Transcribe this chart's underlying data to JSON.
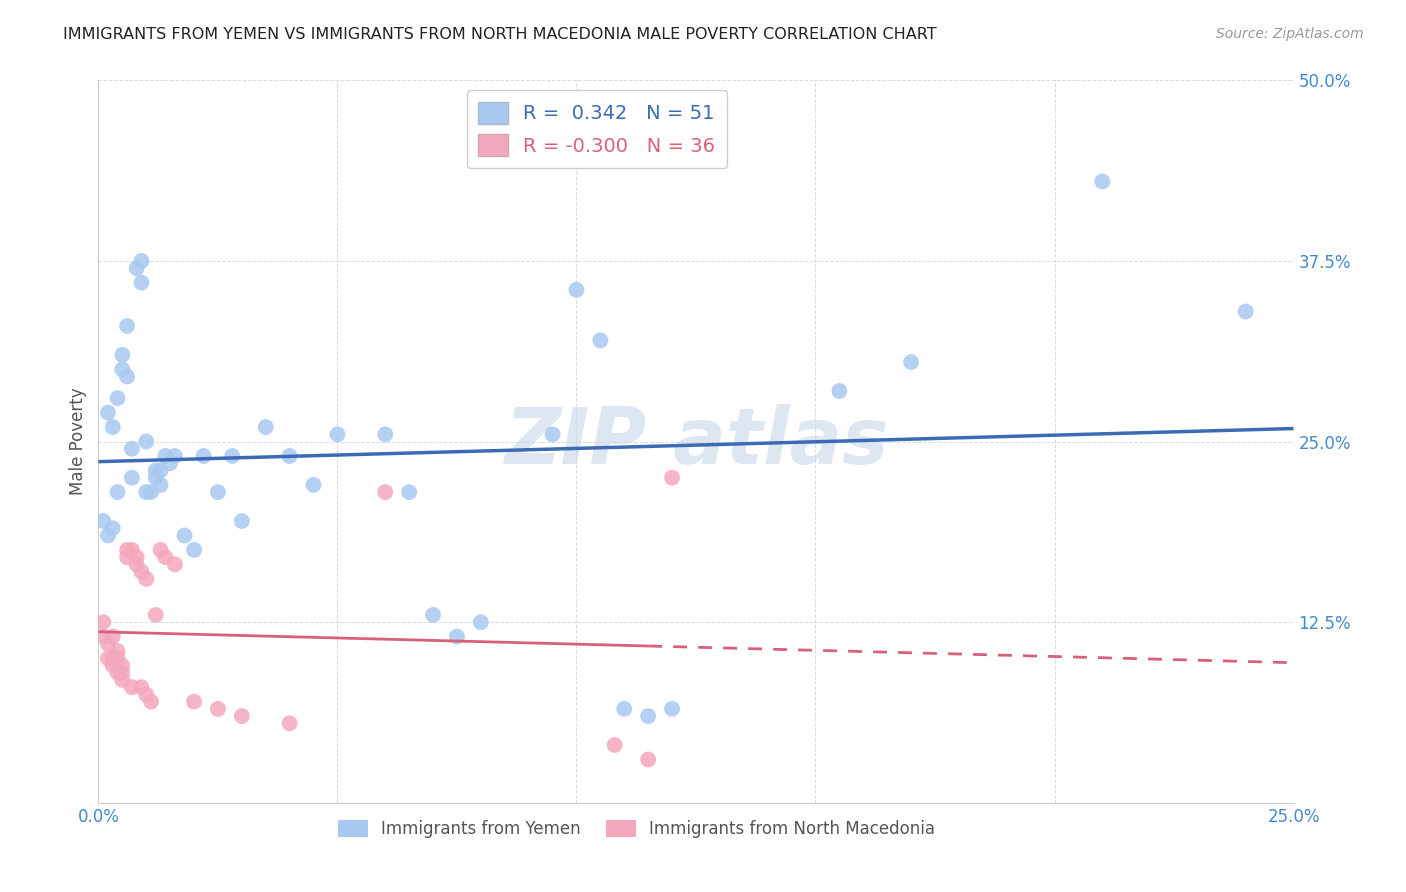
{
  "title": "IMMIGRANTS FROM YEMEN VS IMMIGRANTS FROM NORTH MACEDONIA MALE POVERTY CORRELATION CHART",
  "source": "Source: ZipAtlas.com",
  "ylabel": "Male Poverty",
  "xlim": [
    0.0,
    0.25
  ],
  "ylim": [
    0.0,
    0.5
  ],
  "xticks": [
    0.0,
    0.05,
    0.1,
    0.15,
    0.2,
    0.25
  ],
  "yticks": [
    0.0,
    0.125,
    0.25,
    0.375,
    0.5
  ],
  "xtick_labels": [
    "0.0%",
    "",
    "",
    "",
    "",
    "25.0%"
  ],
  "ytick_labels": [
    "",
    "12.5%",
    "25.0%",
    "37.5%",
    "50.0%"
  ],
  "legend_blue_r": "R =  0.342",
  "legend_blue_n": "N = 51",
  "legend_pink_r": "R = -0.300",
  "legend_pink_n": "N = 36",
  "blue_color": "#A8C8F0",
  "pink_color": "#F4A8BC",
  "line_blue": "#3B6BB5",
  "line_pink": "#D9607A",
  "watermark_color": "#C8D8E8",
  "blue_scatter": [
    [
      0.001,
      0.195
    ],
    [
      0.002,
      0.185
    ],
    [
      0.002,
      0.27
    ],
    [
      0.003,
      0.26
    ],
    [
      0.003,
      0.19
    ],
    [
      0.004,
      0.28
    ],
    [
      0.004,
      0.215
    ],
    [
      0.005,
      0.31
    ],
    [
      0.005,
      0.3
    ],
    [
      0.006,
      0.33
    ],
    [
      0.006,
      0.295
    ],
    [
      0.007,
      0.245
    ],
    [
      0.007,
      0.225
    ],
    [
      0.008,
      0.37
    ],
    [
      0.009,
      0.375
    ],
    [
      0.009,
      0.36
    ],
    [
      0.01,
      0.25
    ],
    [
      0.01,
      0.215
    ],
    [
      0.011,
      0.215
    ],
    [
      0.012,
      0.23
    ],
    [
      0.012,
      0.225
    ],
    [
      0.013,
      0.23
    ],
    [
      0.013,
      0.22
    ],
    [
      0.014,
      0.24
    ],
    [
      0.015,
      0.235
    ],
    [
      0.016,
      0.24
    ],
    [
      0.018,
      0.185
    ],
    [
      0.02,
      0.175
    ],
    [
      0.022,
      0.24
    ],
    [
      0.025,
      0.215
    ],
    [
      0.028,
      0.24
    ],
    [
      0.03,
      0.195
    ],
    [
      0.035,
      0.26
    ],
    [
      0.04,
      0.24
    ],
    [
      0.045,
      0.22
    ],
    [
      0.05,
      0.255
    ],
    [
      0.06,
      0.255
    ],
    [
      0.065,
      0.215
    ],
    [
      0.07,
      0.13
    ],
    [
      0.075,
      0.115
    ],
    [
      0.08,
      0.125
    ],
    [
      0.095,
      0.255
    ],
    [
      0.1,
      0.355
    ],
    [
      0.105,
      0.32
    ],
    [
      0.11,
      0.065
    ],
    [
      0.115,
      0.06
    ],
    [
      0.12,
      0.065
    ],
    [
      0.155,
      0.285
    ],
    [
      0.17,
      0.305
    ],
    [
      0.21,
      0.43
    ],
    [
      0.24,
      0.34
    ]
  ],
  "pink_scatter": [
    [
      0.001,
      0.125
    ],
    [
      0.001,
      0.115
    ],
    [
      0.002,
      0.11
    ],
    [
      0.002,
      0.1
    ],
    [
      0.003,
      0.115
    ],
    [
      0.003,
      0.1
    ],
    [
      0.003,
      0.095
    ],
    [
      0.004,
      0.105
    ],
    [
      0.004,
      0.09
    ],
    [
      0.004,
      0.1
    ],
    [
      0.005,
      0.095
    ],
    [
      0.005,
      0.09
    ],
    [
      0.005,
      0.085
    ],
    [
      0.006,
      0.175
    ],
    [
      0.006,
      0.17
    ],
    [
      0.007,
      0.08
    ],
    [
      0.007,
      0.175
    ],
    [
      0.008,
      0.17
    ],
    [
      0.008,
      0.165
    ],
    [
      0.009,
      0.08
    ],
    [
      0.009,
      0.16
    ],
    [
      0.01,
      0.155
    ],
    [
      0.01,
      0.075
    ],
    [
      0.011,
      0.07
    ],
    [
      0.012,
      0.13
    ],
    [
      0.013,
      0.175
    ],
    [
      0.014,
      0.17
    ],
    [
      0.016,
      0.165
    ],
    [
      0.02,
      0.07
    ],
    [
      0.025,
      0.065
    ],
    [
      0.03,
      0.06
    ],
    [
      0.04,
      0.055
    ],
    [
      0.06,
      0.215
    ],
    [
      0.108,
      0.04
    ],
    [
      0.115,
      0.03
    ],
    [
      0.12,
      0.225
    ]
  ]
}
